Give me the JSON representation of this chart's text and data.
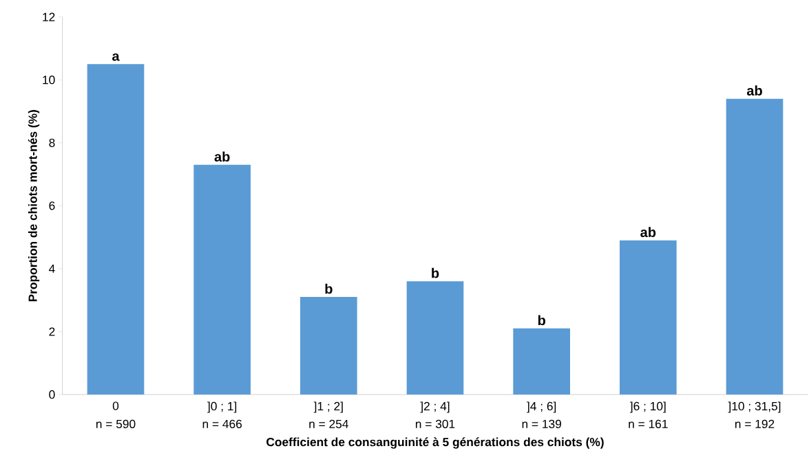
{
  "chart_data": {
    "type": "bar",
    "xlabel": "Coefficient de consanguinité à 5 générations des chiots (%)",
    "ylabel": "Proportion de chiots mort-nés (%)",
    "categories": [
      "0",
      "]0 ; 1]",
      "]1 ; 2]",
      "]2 ; 4]",
      "]4 ; 6]",
      "]6 ; 10]",
      "]10 ; 31,5]"
    ],
    "values": [
      10.5,
      7.3,
      3.1,
      3.6,
      2.1,
      4.9,
      9.4
    ],
    "color": "#5b9bd5",
    "ylim": [
      0,
      12
    ],
    "yticks": [
      0,
      2,
      4,
      6,
      8,
      10,
      12
    ],
    "annotations": [
      {
        "text": "a",
        "x": "0",
        "y": 10.5
      },
      {
        "text": "ab",
        "x": "]0 ; 1]",
        "y": 7.3
      },
      {
        "text": "b",
        "x": "]1 ; 2]",
        "y": 3.1
      },
      {
        "text": "b",
        "x": "]2 ; 4]",
        "y": 3.6
      },
      {
        "text": "b",
        "x": "]4 ; 6]",
        "y": 2.1
      },
      {
        "text": "ab",
        "x": "]6 ; 10]",
        "y": 4.9
      },
      {
        "text": "ab",
        "x": "]10 ; 31,5]",
        "y": 9.4
      },
      "n = 590",
      "n = 466",
      "n = 254",
      "n = 301",
      "n = 139",
      "n = 161",
      "n = 192"
    ]
  }
}
